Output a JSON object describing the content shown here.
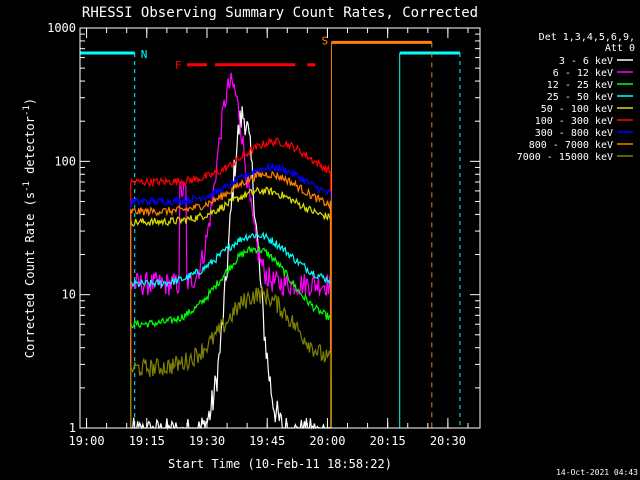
{
  "chart_data": {
    "type": "line",
    "title": "RHESSI Observing Summary Count Rates, Corrected",
    "xlabel": "Start Time (10-Feb-11 18:58:22)",
    "ylabel_main": "Corrected Count Rate (s",
    "ylabel_sup1": "-1",
    "ylabel_mid": " detector",
    "ylabel_sup2": "-1",
    "ylabel_end": ")",
    "yscale": "log",
    "ylim": [
      1,
      1000
    ],
    "x_ticks": [
      "19:00",
      "19:15",
      "19:30",
      "19:45",
      "20:00",
      "20:15",
      "20:30"
    ],
    "y_ticks": [
      "1",
      "10",
      "100",
      "1000"
    ],
    "timestamp": "14-Oct-2021 04:43",
    "legend_header": [
      "Det 1,3,4,5,6,9,",
      "Att 0"
    ],
    "legend_location": "top-right",
    "annotations": {
      "night": "N",
      "flare": "F",
      "saa": "S"
    },
    "series": [
      {
        "name": "3 - 6 keV",
        "color": "#ffffff",
        "plateau": 0.9,
        "peak": 220,
        "peak_time": "19:39"
      },
      {
        "name": "6 - 12 keV",
        "color": "#ff00ff",
        "plateau": 12,
        "peak": 380,
        "peak_time": "19:36"
      },
      {
        "name": "12 - 25 keV",
        "color": "#00ff00",
        "plateau": 6,
        "peak": 22,
        "peak_time": "19:42"
      },
      {
        "name": "25 - 50 keV",
        "color": "#00ffff",
        "plateau": 12,
        "peak": 28,
        "peak_time": "19:42"
      },
      {
        "name": "50 - 100 keV",
        "color": "#dddd00",
        "plateau": 35,
        "peak": 60,
        "peak_time": "19:44"
      },
      {
        "name": "100 - 300 keV",
        "color": "#ff0000",
        "plateau": 70,
        "peak": 140,
        "peak_time": "19:47"
      },
      {
        "name": "300 - 800 keV",
        "color": "#0000ff",
        "plateau": 50,
        "peak": 90,
        "peak_time": "19:46"
      },
      {
        "name": "800 - 7000 keV",
        "color": "#ff8000",
        "plateau": 42,
        "peak": 80,
        "peak_time": "19:45"
      },
      {
        "name": "7000 - 15000 keV",
        "color": "#808000",
        "plateau": 2.8,
        "peak": 10,
        "peak_time": "19:43"
      }
    ]
  }
}
